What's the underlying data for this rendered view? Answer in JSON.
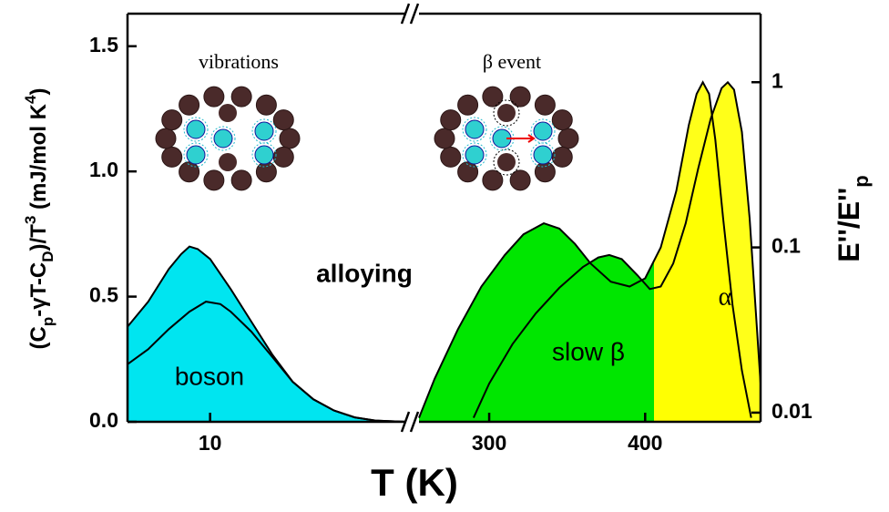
{
  "chart_data": {
    "type": "area",
    "xlabel": "T (K)",
    "ylabel": [
      "(C",
      "p",
      "-γT-C",
      "D",
      ")/T",
      "3",
      " (mJ/mol K",
      "4",
      ")"
    ],
    "y2label": [
      "E''/E''",
      "p"
    ],
    "ylim": [
      0,
      1.63
    ],
    "yticks": [
      {
        "value": 0,
        "label": "0.0"
      },
      {
        "value": 0.5,
        "label": "0.5"
      },
      {
        "value": 1,
        "label": "1.0"
      },
      {
        "value": 1.5,
        "label": "1.5"
      }
    ],
    "y2lim": [
      0.0088,
      2.6
    ],
    "y2ticks": [
      0.01,
      0.1,
      1
    ],
    "y2scale": "log",
    "xsegments": [
      {
        "xlim": [
          6,
          19.5
        ],
        "xticks": [
          10
        ]
      },
      {
        "xlim": [
          255,
          474
        ],
        "xticks": [
          300,
          400
        ]
      }
    ],
    "annotations": [
      "vibrations",
      "β event",
      "alloying",
      "boson",
      "slow β",
      "α"
    ],
    "series": [
      {
        "axis": "y",
        "segment": 0,
        "colors": [
          "#00e5f0"
        ],
        "x": [
          6,
          7,
          8,
          8.6,
          9,
          9.4,
          10,
          11,
          12,
          13,
          14,
          15,
          16,
          17,
          18,
          19.5
        ],
        "values": [
          0.38,
          0.48,
          0.61,
          0.67,
          0.7,
          0.69,
          0.65,
          0.53,
          0.4,
          0.27,
          0.16,
          0.09,
          0.045,
          0.018,
          0.005,
          0
        ]
      },
      {
        "axis": "y",
        "segment": 0,
        "colors": [
          "#00e5f0"
        ],
        "x": [
          6,
          7,
          8,
          9,
          9.8,
          10.5,
          11,
          12,
          13,
          14,
          15,
          16,
          17,
          18,
          19.5
        ],
        "values": [
          0.23,
          0.29,
          0.37,
          0.44,
          0.48,
          0.47,
          0.44,
          0.36,
          0.26,
          0.16,
          0.09,
          0.045,
          0.018,
          0.005,
          0
        ]
      },
      {
        "axis": "y2",
        "segment": 1,
        "colors": [
          "#00e600",
          "#ffff00"
        ],
        "x": [
          255,
          265,
          280,
          295,
          310,
          322,
          335,
          345,
          355,
          365,
          378,
          390,
          400,
          410,
          420,
          428,
          433,
          437,
          441,
          445,
          450,
          456,
          462,
          468
        ],
        "values": [
          0.0093,
          0.016,
          0.032,
          0.058,
          0.09,
          0.12,
          0.14,
          0.13,
          0.105,
          0.08,
          0.062,
          0.058,
          0.065,
          0.1,
          0.22,
          0.55,
          0.85,
          1.0,
          0.85,
          0.45,
          0.15,
          0.045,
          0.018,
          0.0093
        ]
      },
      {
        "axis": "y2",
        "segment": 1,
        "colors": [
          "#00e600",
          "#ffff00"
        ],
        "x": [
          290,
          300,
          315,
          330,
          345,
          360,
          370,
          377,
          385,
          395,
          403,
          410,
          418,
          426,
          434,
          442,
          449,
          453,
          457,
          462,
          467,
          471,
          474
        ],
        "values": [
          0.0093,
          0.015,
          0.026,
          0.04,
          0.057,
          0.076,
          0.087,
          0.09,
          0.085,
          0.068,
          0.056,
          0.058,
          0.08,
          0.14,
          0.3,
          0.6,
          0.92,
          1.0,
          0.9,
          0.5,
          0.15,
          0.04,
          0.015
        ]
      }
    ]
  }
}
